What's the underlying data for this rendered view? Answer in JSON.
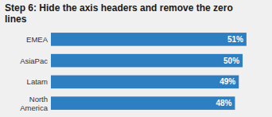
{
  "chart_data": {
    "type": "bar",
    "orientation": "horizontal",
    "title": "Step 6: Hide the axis headers and remove the zero\nlines",
    "categories": [
      "EMEA",
      "AsiaPac",
      "Latam",
      "North\nAmerica"
    ],
    "values": [
      51,
      50,
      49,
      48
    ],
    "value_labels": [
      "51%",
      "50%",
      "49%",
      "48%"
    ],
    "data_labels": true,
    "color": "#2E7EC2",
    "xlim": [
      0,
      56
    ],
    "tick_labels": "y",
    "grid": false
  }
}
